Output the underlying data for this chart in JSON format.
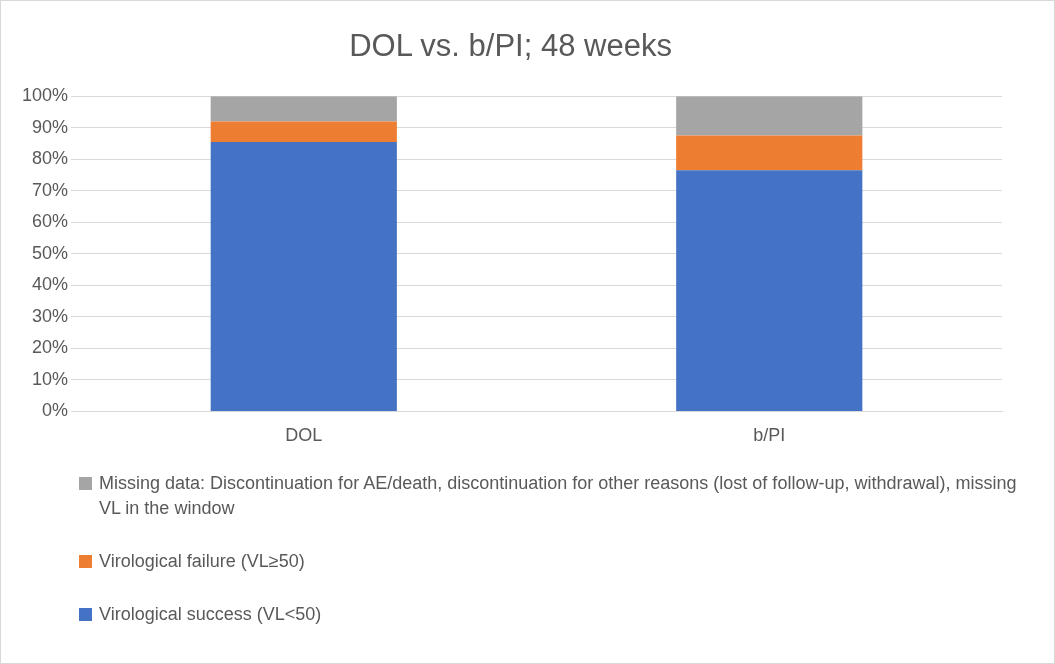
{
  "chart_data": {
    "type": "bar",
    "title": "DOL vs. b/PI; 48 weeks",
    "categories": [
      "DOL",
      "b/PI"
    ],
    "stacked": true,
    "ylim": [
      0,
      100
    ],
    "yticks": [
      {
        "value": 0,
        "label": "0%"
      },
      {
        "value": 10,
        "label": "10%"
      },
      {
        "value": 20,
        "label": "20%"
      },
      {
        "value": 30,
        "label": "30%"
      },
      {
        "value": 40,
        "label": "40%"
      },
      {
        "value": 50,
        "label": "50%"
      },
      {
        "value": 60,
        "label": "60%"
      },
      {
        "value": 70,
        "label": "70%"
      },
      {
        "value": 80,
        "label": "80%"
      },
      {
        "value": 90,
        "label": "90%"
      },
      {
        "value": 100,
        "label": "100%"
      }
    ],
    "grid": "y",
    "legend": "bottom",
    "series": [
      {
        "name": "Virological success (VL<50)",
        "color": "#4472c4",
        "values": [
          85.5,
          76.5
        ]
      },
      {
        "name": "Virological failure (VL≥50)",
        "color": "#ed7d31",
        "values": [
          6.5,
          11
        ]
      },
      {
        "name": "Missing data: Discontinuation for AE/death, discontinuation for other reasons (lost of follow-up, withdrawal), missing VL in the window",
        "color": "#a5a5a5",
        "values": [
          8,
          12.5
        ]
      }
    ]
  }
}
